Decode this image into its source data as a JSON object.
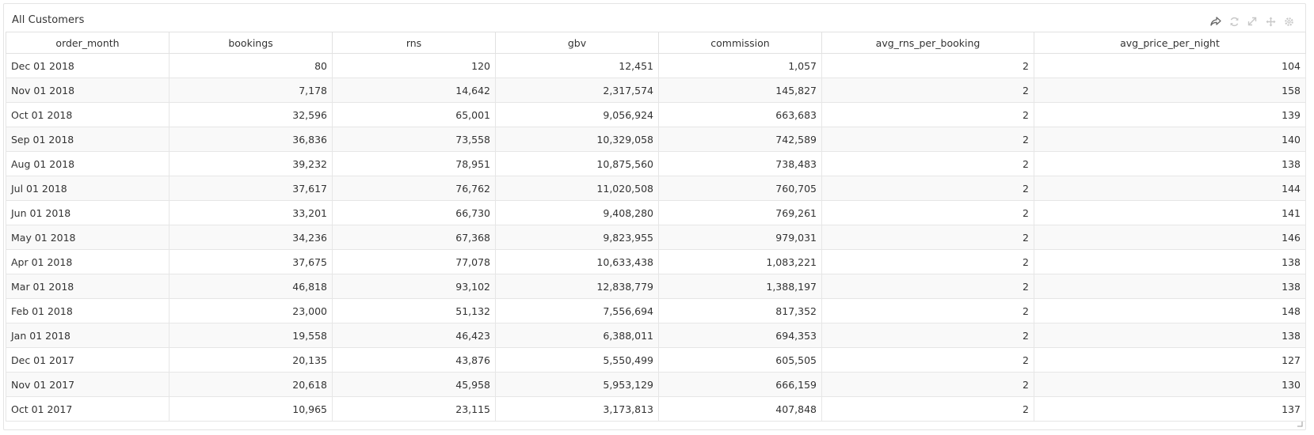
{
  "panel": {
    "title": "All Customers",
    "tools": [
      "share-icon",
      "refresh-icon",
      "expand-icon",
      "move-icon",
      "settings-icon"
    ]
  },
  "table": {
    "columns": [
      "order_month",
      "bookings",
      "rns",
      "gbv",
      "commission",
      "avg_rns_per_booking",
      "avg_price_per_night"
    ],
    "rows": [
      [
        "Dec 01 2018",
        "80",
        "120",
        "12,451",
        "1,057",
        "2",
        "104"
      ],
      [
        "Nov 01 2018",
        "7,178",
        "14,642",
        "2,317,574",
        "145,827",
        "2",
        "158"
      ],
      [
        "Oct 01 2018",
        "32,596",
        "65,001",
        "9,056,924",
        "663,683",
        "2",
        "139"
      ],
      [
        "Sep 01 2018",
        "36,836",
        "73,558",
        "10,329,058",
        "742,589",
        "2",
        "140"
      ],
      [
        "Aug 01 2018",
        "39,232",
        "78,951",
        "10,875,560",
        "738,483",
        "2",
        "138"
      ],
      [
        "Jul 01 2018",
        "37,617",
        "76,762",
        "11,020,508",
        "760,705",
        "2",
        "144"
      ],
      [
        "Jun 01 2018",
        "33,201",
        "66,730",
        "9,408,280",
        "769,261",
        "2",
        "141"
      ],
      [
        "May 01 2018",
        "34,236",
        "67,368",
        "9,823,955",
        "979,031",
        "2",
        "146"
      ],
      [
        "Apr 01 2018",
        "37,675",
        "77,078",
        "10,633,438",
        "1,083,221",
        "2",
        "138"
      ],
      [
        "Mar 01 2018",
        "46,818",
        "93,102",
        "12,838,779",
        "1,388,197",
        "2",
        "138"
      ],
      [
        "Feb 01 2018",
        "23,000",
        "51,132",
        "7,556,694",
        "817,352",
        "2",
        "148"
      ],
      [
        "Jan 01 2018",
        "19,558",
        "46,423",
        "6,388,011",
        "694,353",
        "2",
        "138"
      ],
      [
        "Dec 01 2017",
        "20,135",
        "43,876",
        "5,550,499",
        "605,505",
        "2",
        "127"
      ],
      [
        "Nov 01 2017",
        "20,618",
        "45,958",
        "5,953,129",
        "666,159",
        "2",
        "130"
      ],
      [
        "Oct 01 2017",
        "10,965",
        "23,115",
        "3,173,813",
        "407,848",
        "2",
        "137"
      ]
    ]
  },
  "colors": {
    "text": "#333333",
    "border": "#e4e4e4",
    "stripe": "#f9f9f9",
    "icon_active": "#666666",
    "icon_muted": "#c8c8c8"
  }
}
